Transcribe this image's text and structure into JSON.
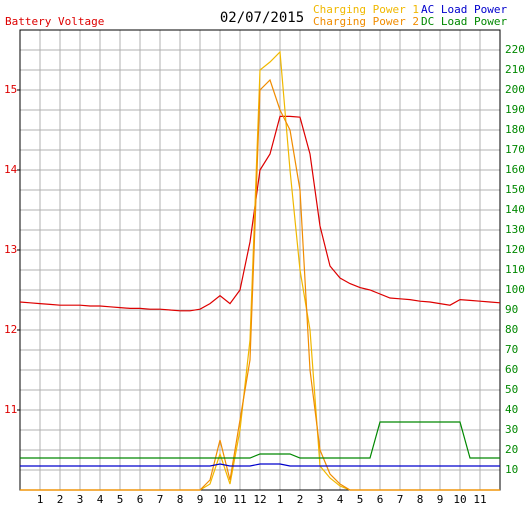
{
  "chart_data": {
    "type": "line",
    "title": "02/07/2015",
    "ylabel": "Battery Voltage",
    "x": [
      0,
      0.5,
      1,
      1.5,
      2,
      2.5,
      3,
      3.5,
      4,
      4.5,
      5,
      5.5,
      6,
      6.5,
      7,
      7.5,
      8,
      8.5,
      9,
      9.5,
      10,
      10.5,
      11,
      11.5,
      12,
      12.5,
      13,
      13.5,
      14,
      14.5,
      15,
      15.5,
      16,
      16.5,
      17,
      17.5,
      18,
      18.5,
      19,
      19.5,
      20,
      20.5,
      21,
      21.5,
      22,
      22.5,
      23,
      23.5,
      24
    ],
    "xlim": [
      0,
      24
    ],
    "xticks": [
      1,
      2,
      3,
      4,
      5,
      6,
      7,
      8,
      9,
      10,
      11,
      12,
      {
        "value": 13,
        "label": "1"
      },
      {
        "value": 14,
        "label": "2"
      },
      {
        "value": 15,
        "label": "3"
      },
      {
        "value": 16,
        "label": "4"
      },
      {
        "value": 17,
        "label": "5"
      },
      {
        "value": 18,
        "label": "6"
      },
      {
        "value": 19,
        "label": "7"
      },
      {
        "value": 20,
        "label": "8"
      },
      {
        "value": 21,
        "label": "9"
      },
      {
        "value": 22,
        "label": "10"
      },
      {
        "value": 23,
        "label": "11"
      }
    ],
    "ylim": [
      10,
      15.75
    ],
    "yticks": [
      11,
      12,
      13,
      14,
      15
    ],
    "y2lim": [
      0,
      230
    ],
    "y2ticks": [
      10,
      20,
      30,
      40,
      50,
      60,
      70,
      80,
      90,
      100,
      110,
      120,
      130,
      140,
      150,
      160,
      170,
      180,
      190,
      200,
      210,
      220
    ],
    "grid": true,
    "legend": "top-right",
    "series": [
      {
        "name": "Battery Voltage",
        "color": "#dd0000",
        "axis": "y",
        "legend": false,
        "values": [
          12.35,
          12.34,
          12.33,
          12.32,
          12.31,
          12.31,
          12.31,
          12.3,
          12.3,
          12.29,
          12.28,
          12.27,
          12.27,
          12.26,
          12.26,
          12.25,
          12.24,
          12.24,
          12.26,
          12.33,
          12.43,
          12.33,
          12.5,
          13.1,
          14.0,
          14.2,
          14.67,
          14.67,
          14.66,
          14.2,
          13.3,
          12.8,
          12.65,
          12.58,
          12.53,
          12.5,
          12.45,
          12.4,
          12.39,
          12.38,
          12.36,
          12.35,
          12.33,
          12.31,
          12.38,
          12.37,
          12.36,
          12.35,
          12.34
        ]
      },
      {
        "name": "Charging Power 1",
        "color": "#f0b800",
        "axis": "y2",
        "values": [
          0,
          0,
          0,
          0,
          0,
          0,
          0,
          0,
          0,
          0,
          0,
          0,
          0,
          0,
          0,
          0,
          0,
          0,
          0,
          3,
          18,
          3,
          30,
          75,
          210,
          214,
          219,
          160,
          110,
          80,
          12,
          6,
          2,
          0,
          0,
          0,
          0,
          0,
          0,
          0,
          0,
          0,
          0,
          0,
          0,
          0,
          0,
          0,
          0
        ]
      },
      {
        "name": "Charging Power 2",
        "color": "#f08c00",
        "axis": "y2",
        "values": [
          0,
          0,
          0,
          0,
          0,
          0,
          0,
          0,
          0,
          0,
          0,
          0,
          0,
          0,
          0,
          0,
          0,
          0,
          0,
          5,
          25,
          5,
          35,
          65,
          200,
          205,
          190,
          180,
          150,
          60,
          20,
          8,
          3,
          0,
          0,
          0,
          0,
          0,
          0,
          0,
          0,
          0,
          0,
          0,
          0,
          0,
          0,
          0,
          0
        ]
      },
      {
        "name": "AC Load Power",
        "color": "#0000cc",
        "axis": "y2",
        "values": [
          12,
          12,
          12,
          12,
          12,
          12,
          12,
          12,
          12,
          12,
          12,
          12,
          12,
          12,
          12,
          12,
          12,
          12,
          12,
          12,
          13,
          12,
          12,
          12,
          13,
          13,
          13,
          12,
          12,
          12,
          12,
          12,
          12,
          12,
          12,
          12,
          12,
          12,
          12,
          12,
          12,
          12,
          12,
          12,
          12,
          12,
          12,
          12,
          12
        ]
      },
      {
        "name": "DC Load Power",
        "color": "#008800",
        "axis": "y2",
        "values": [
          16,
          16,
          16,
          16,
          16,
          16,
          16,
          16,
          16,
          16,
          16,
          16,
          16,
          16,
          16,
          16,
          16,
          16,
          16,
          16,
          16,
          16,
          16,
          16,
          18,
          18,
          18,
          18,
          16,
          16,
          16,
          16,
          16,
          16,
          16,
          16,
          34,
          34,
          34,
          34,
          34,
          34,
          34,
          34,
          34,
          16,
          16,
          16,
          16
        ]
      }
    ]
  }
}
